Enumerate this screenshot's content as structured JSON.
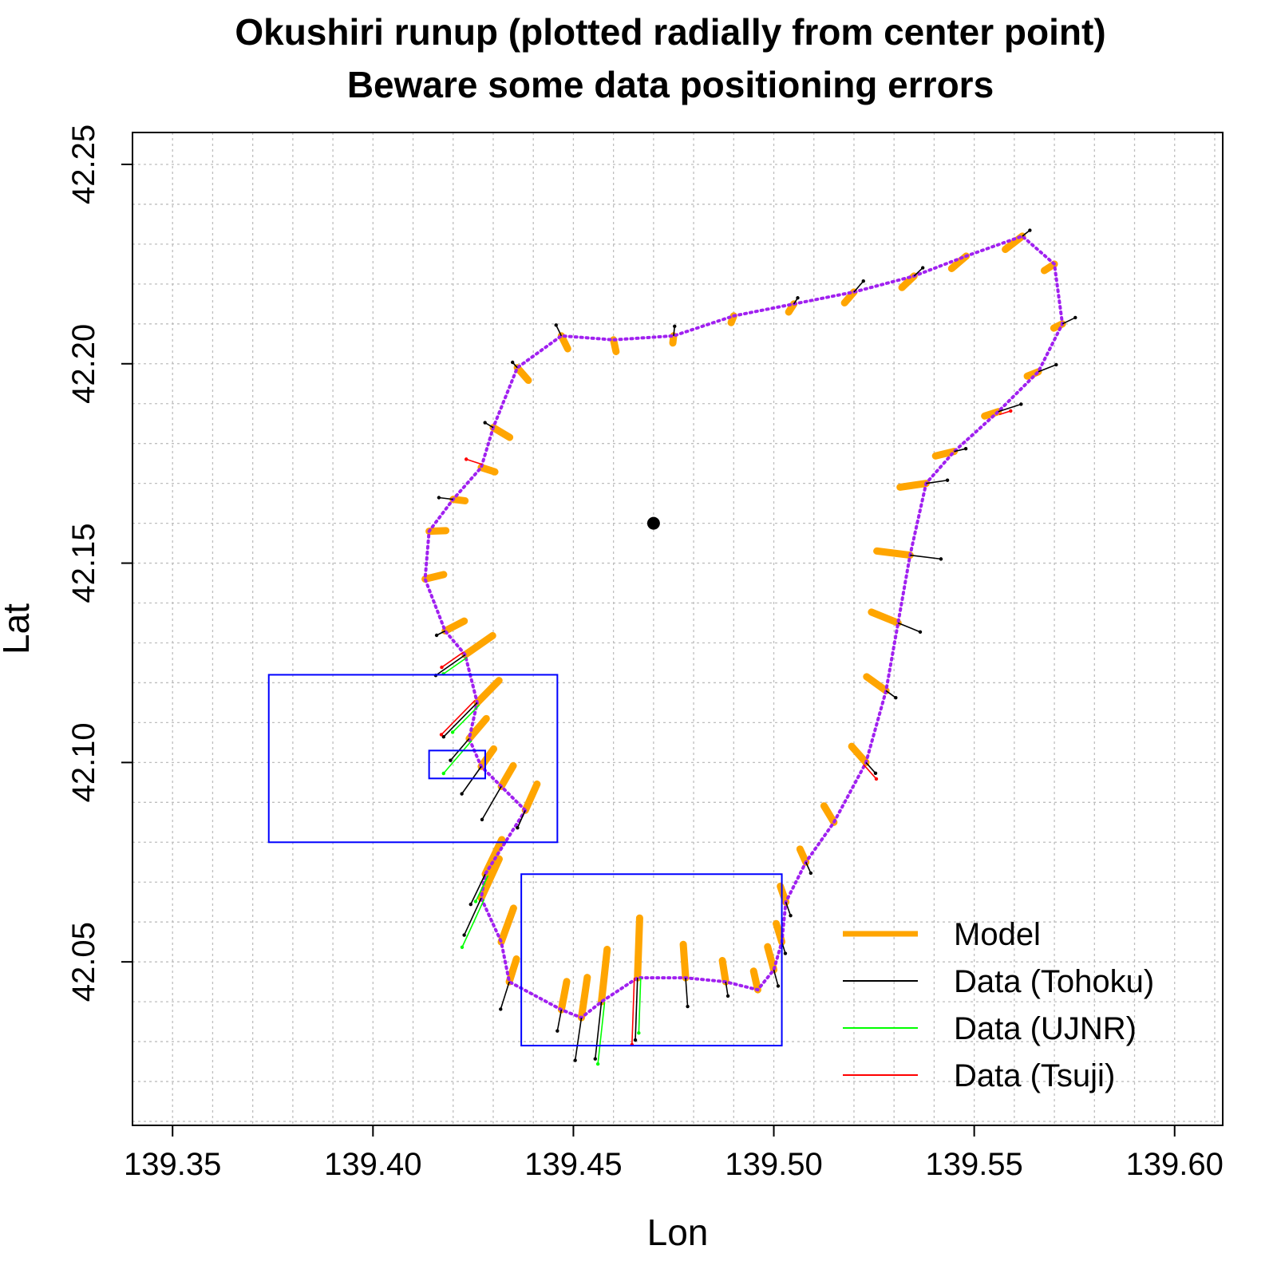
{
  "chart_data": {
    "type": "scatter",
    "title_line1": "Okushiri runup (plotted radially from center point)",
    "title_line2": "Beware some data positioning errors",
    "xlabel": "Lon",
    "ylabel": "Lat",
    "xlim": [
      139.34,
      139.612
    ],
    "ylim": [
      42.009,
      42.258
    ],
    "xticks": [
      "139.35",
      "139.40",
      "139.45",
      "139.50",
      "139.55",
      "139.60"
    ],
    "yticks": [
      "42.05",
      "42.10",
      "42.15",
      "42.20",
      "42.25"
    ],
    "grid": true,
    "grid_step": 0.01,
    "center_point": {
      "lon": 139.47,
      "lat": 42.16
    },
    "legend_position": "bottom-right",
    "legend": [
      {
        "label": "Model",
        "color": "#ffa500",
        "style": "thick"
      },
      {
        "label": "Data (Tohoku)",
        "color": "#000000",
        "style": "thin"
      },
      {
        "label": "Data (UJNR)",
        "color": "#00ff00",
        "style": "thin"
      },
      {
        "label": "Data (Tsuji)",
        "color": "#ff0000",
        "style": "thin"
      }
    ],
    "colors": {
      "model": "#ffa500",
      "coastline": "#a020f0",
      "tohoku": "#000000",
      "ujnr": "#00ff00",
      "tsuji": "#ff0000",
      "boxes": "#0000ff",
      "center": "#000000"
    },
    "boxes": [
      {
        "lon": [
          139.374,
          139.446
        ],
        "lat": [
          42.08,
          42.122
        ]
      },
      {
        "lon": [
          139.414,
          139.428
        ],
        "lat": [
          42.096,
          42.103
        ]
      },
      {
        "lon": [
          139.437,
          139.502
        ],
        "lat": [
          42.029,
          42.072
        ]
      }
    ],
    "coastline": [
      [
        139.438,
        42.088
      ],
      [
        139.428,
        42.072
      ],
      [
        139.427,
        42.066
      ],
      [
        139.432,
        42.055
      ],
      [
        139.434,
        42.045
      ],
      [
        139.447,
        42.038
      ],
      [
        139.452,
        42.036
      ],
      [
        139.457,
        42.04
      ],
      [
        139.466,
        42.046
      ],
      [
        139.478,
        42.046
      ],
      [
        139.488,
        42.045
      ],
      [
        139.496,
        42.043
      ],
      [
        139.5,
        42.048
      ],
      [
        139.502,
        42.055
      ],
      [
        139.503,
        42.065
      ],
      [
        139.508,
        42.075
      ],
      [
        139.515,
        42.085
      ],
      [
        139.523,
        42.1
      ],
      [
        139.528,
        42.118
      ],
      [
        139.531,
        42.135
      ],
      [
        139.534,
        42.152
      ],
      [
        139.538,
        42.17
      ],
      [
        139.545,
        42.178
      ],
      [
        139.556,
        42.188
      ],
      [
        139.566,
        42.198
      ],
      [
        139.572,
        42.21
      ],
      [
        139.57,
        42.225
      ],
      [
        139.562,
        42.232
      ],
      [
        139.548,
        42.227
      ],
      [
        139.535,
        42.222
      ],
      [
        139.52,
        42.218
      ],
      [
        139.505,
        42.215
      ],
      [
        139.49,
        42.212
      ],
      [
        139.475,
        42.207
      ],
      [
        139.46,
        42.206
      ],
      [
        139.447,
        42.207
      ],
      [
        139.436,
        42.199
      ],
      [
        139.43,
        42.184
      ],
      [
        139.427,
        42.174
      ],
      [
        139.42,
        42.166
      ],
      [
        139.414,
        42.158
      ],
      [
        139.413,
        42.146
      ],
      [
        139.418,
        42.133
      ],
      [
        139.423,
        42.127
      ],
      [
        139.426,
        42.115
      ],
      [
        139.424,
        42.106
      ],
      [
        139.427,
        42.099
      ],
      [
        139.432,
        42.094
      ]
    ],
    "model_runup_m": [
      12,
      16,
      18,
      15,
      10,
      12,
      17,
      22,
      25,
      14,
      9,
      8,
      10,
      8,
      7,
      6,
      8,
      9,
      10,
      12,
      14,
      11,
      8,
      6,
      5,
      4,
      5,
      9,
      8,
      7,
      6,
      4,
      3,
      3,
      5,
      6,
      7,
      8,
      6,
      5,
      7,
      8,
      9,
      14,
      13,
      11,
      9,
      10
    ],
    "data_tohoku_m": [
      8,
      14,
      17,
      null,
      12,
      9,
      18,
      24,
      26,
      12,
      6,
      null,
      7,
      5,
      6,
      5,
      null,
      6,
      5,
      10,
      13,
      9,
      5,
      10,
      8,
      6,
      null,
      4,
      null,
      5,
      6,
      3,
      null,
      4,
      null,
      5,
      3,
      4,
      null,
      6,
      null,
      null,
      4,
      15,
      20,
      12,
      14,
      16
    ],
    "data_ujnr_m": [
      null,
      12,
      22,
      null,
      null,
      null,
      null,
      26,
      23,
      null,
      null,
      null,
      null,
      null,
      null,
      null,
      null,
      null,
      null,
      null,
      null,
      null,
      null,
      null,
      null,
      null,
      null,
      null,
      null,
      null,
      null,
      null,
      null,
      null,
      null,
      null,
      null,
      null,
      null,
      null,
      null,
      null,
      null,
      12,
      16,
      18,
      null,
      null
    ],
    "data_tsuji_m": [
      null,
      null,
      null,
      null,
      null,
      null,
      null,
      null,
      28,
      null,
      null,
      null,
      null,
      null,
      null,
      null,
      null,
      8,
      null,
      null,
      null,
      null,
      null,
      5,
      null,
      null,
      null,
      null,
      null,
      null,
      null,
      null,
      null,
      null,
      null,
      null,
      null,
      null,
      7,
      null,
      null,
      null,
      null,
      11,
      20,
      null,
      null,
      null
    ]
  }
}
